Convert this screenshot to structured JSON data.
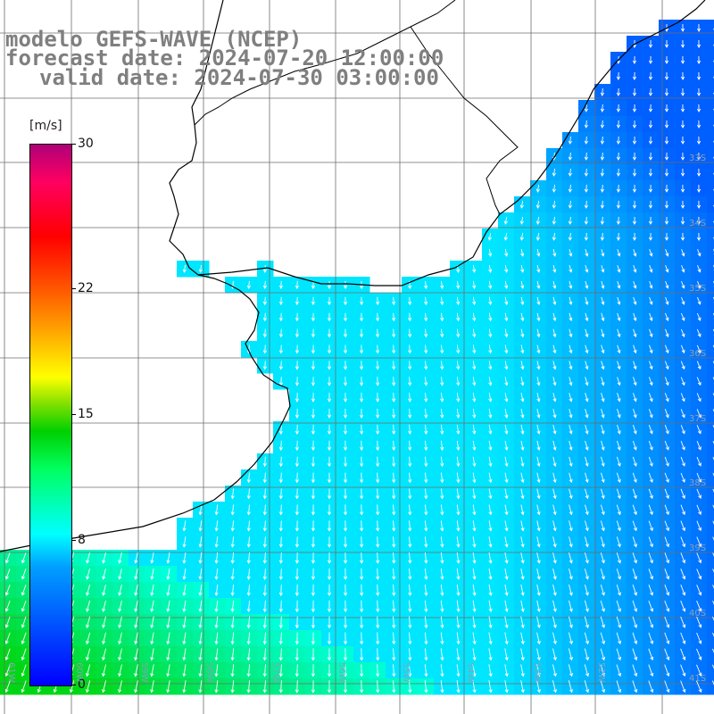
{
  "title": {
    "line1": "modelo GEFS-WAVE (NCEP)",
    "line2": "forecast date: 2024-07-20 12:00:00",
    "line3": "valid date: 2024-07-30 03:00:00"
  },
  "colorbar": {
    "unit": "[m/s]",
    "ticks": [
      "30",
      "22",
      "15",
      "8",
      "0"
    ],
    "tick_values": [
      30,
      22,
      15,
      8,
      0
    ],
    "range": [
      0,
      30
    ]
  },
  "map": {
    "lat_labels": [
      "33S",
      "34S",
      "35S",
      "36S",
      "37S",
      "38S",
      "39S",
      "40S",
      "41S"
    ],
    "lon_labels": [
      "61W",
      "60W",
      "59W",
      "58W",
      "57W",
      "56W",
      "55W",
      "54W",
      "53W",
      "52W"
    ],
    "colors": {
      "land": "#ffffff",
      "coastline": "#000000",
      "grid": "#6e6e6e",
      "arrow": "#ffffff",
      "wind_low": "#1e78ff",
      "wind_mid": "#00e5ff",
      "wind_high": "#00e040"
    }
  }
}
